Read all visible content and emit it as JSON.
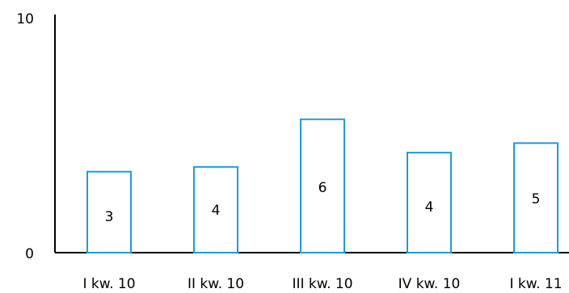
{
  "chart_data": {
    "type": "bar",
    "categories": [
      "I kw. 10",
      "II kw. 10",
      "III kw. 10",
      "IV kw. 10",
      "I kw. 11"
    ],
    "values": [
      3.4,
      3.6,
      5.6,
      4.2,
      4.6
    ],
    "data_labels": [
      "3",
      "4",
      "6",
      "4",
      "5"
    ],
    "ylim": [
      0,
      10
    ],
    "yticks": [
      "0",
      "10"
    ],
    "grid": false,
    "legend": "none",
    "bar_fill": "#ffffff",
    "bar_stroke": "#1e9be0"
  }
}
